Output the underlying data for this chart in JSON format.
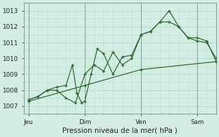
{
  "background_color": "#d4ede4",
  "grid_color": "#b8ddd0",
  "line_color": "#2d6a2d",
  "marker_color": "#2d6a2d",
  "xlabel": "Pression niveau de la mer( hPa )",
  "ylim": [
    1006.5,
    1013.5
  ],
  "yticks": [
    1007,
    1008,
    1009,
    1010,
    1011,
    1012,
    1013
  ],
  "xtick_labels": [
    "Jeu",
    "Dim",
    "Ven",
    "Sam"
  ],
  "xtick_positions": [
    0,
    36,
    72,
    108
  ],
  "xlim": [
    -3,
    120
  ],
  "line1_x": [
    0,
    6,
    12,
    18,
    24,
    28,
    31,
    34,
    36,
    40,
    44,
    48,
    54,
    60,
    66,
    72,
    78,
    84,
    90,
    96,
    102,
    108,
    114,
    120
  ],
  "line1_y": [
    1007.4,
    1007.6,
    1008.0,
    1008.2,
    1008.3,
    1009.6,
    1007.8,
    1007.2,
    1007.3,
    1009.0,
    1010.6,
    1010.3,
    1009.0,
    1010.1,
    1010.2,
    1011.5,
    1011.7,
    1012.3,
    1013.0,
    1012.0,
    1011.3,
    1011.1,
    1011.0,
    1010.0
  ],
  "line2_x": [
    0,
    6,
    12,
    18,
    24,
    30,
    36,
    42,
    48,
    54,
    60,
    66,
    72,
    78,
    84,
    90,
    96,
    102,
    108,
    114,
    120
  ],
  "line2_y": [
    1007.4,
    1007.6,
    1008.0,
    1008.0,
    1007.5,
    1007.2,
    1009.0,
    1009.6,
    1009.2,
    1010.4,
    1009.6,
    1010.0,
    1011.5,
    1011.7,
    1012.3,
    1012.3,
    1012.0,
    1011.3,
    1011.3,
    1011.1,
    1009.8
  ],
  "line3_x": [
    0,
    36,
    72,
    120
  ],
  "line3_y": [
    1007.3,
    1008.3,
    1009.3,
    1009.8
  ],
  "figsize": [
    3.2,
    2.0
  ],
  "dpi": 100
}
